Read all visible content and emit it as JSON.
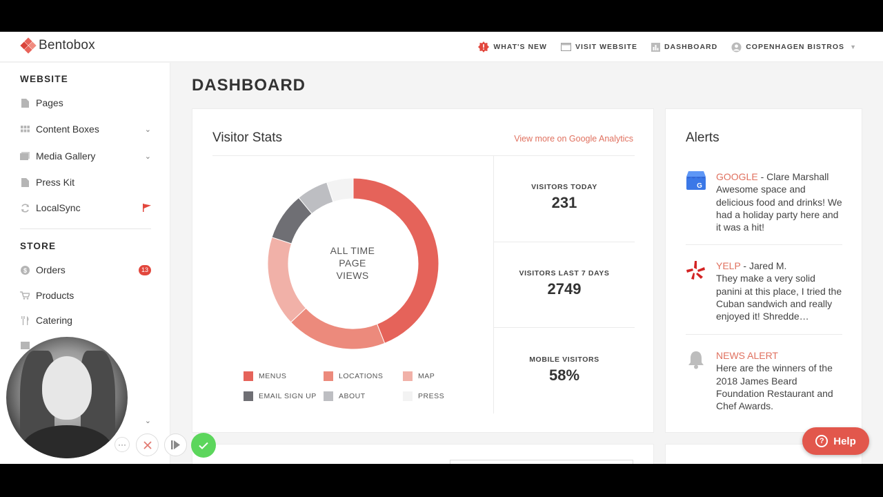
{
  "app": {
    "name": "Bentobox"
  },
  "topnav": {
    "whats_new": "WHAT'S NEW",
    "visit_website": "VISIT WEBSITE",
    "dashboard": "DASHBOARD",
    "account": "COPENHAGEN BISTROS"
  },
  "sidebar": {
    "website_heading": "WEBSITE",
    "website_items": [
      {
        "label": "Pages",
        "icon": "page-icon"
      },
      {
        "label": "Content Boxes",
        "icon": "grid-icon"
      },
      {
        "label": "Media Gallery",
        "icon": "gallery-icon"
      },
      {
        "label": "Press Kit",
        "icon": "page-icon"
      },
      {
        "label": "LocalSync",
        "icon": "sync-icon"
      }
    ],
    "store_heading": "STORE",
    "store_items": [
      {
        "label": "Orders",
        "icon": "dollar-icon",
        "badge": "13"
      },
      {
        "label": "Products",
        "icon": "cart-icon"
      },
      {
        "label": "Catering",
        "icon": "fork-knife-icon"
      }
    ]
  },
  "page": {
    "title": "DASHBOARD"
  },
  "visitor_stats": {
    "title": "Visitor Stats",
    "link": "View more on Google Analytics",
    "donut_label": [
      "ALL TIME",
      "PAGE",
      "VIEWS"
    ],
    "stats": [
      {
        "label": "VISITORS TODAY",
        "value": "231"
      },
      {
        "label": "VISITORS LAST 7 DAYS",
        "value": "2749"
      },
      {
        "label": "MOBILE VISITORS",
        "value": "58%"
      }
    ]
  },
  "chart_data": {
    "type": "pie",
    "categories": [
      "MENUS",
      "LOCATIONS",
      "MAP",
      "EMAIL SIGN UP",
      "ABOUT",
      "PRESS"
    ],
    "values": [
      44,
      19,
      17,
      9,
      6,
      5
    ],
    "colors": [
      "#e5635a",
      "#ec8a7c",
      "#f1b1a8",
      "#6f6f74",
      "#bdbec2",
      "#f3f3f3"
    ],
    "title": "",
    "legend": "bottom"
  },
  "alerts": {
    "title": "Alerts",
    "items": [
      {
        "source": "GOOGLE",
        "author": " - Clare Marshall",
        "text": "Awesome space and delicious food and drinks! We had a holiday party here and it was a hit!",
        "icon": "google-business-icon"
      },
      {
        "source": "YELP",
        "author": " - Jared M.",
        "text": "They make a very solid panini at this place, I tried the Cuban sandwich and really enjoyed it! Shredde…",
        "icon": "yelp-icon"
      },
      {
        "source": "NEWS ALERT",
        "author": "",
        "text": "Here are the winners of the 2018 James Beard Foundation Restaurant and Chef Awards.",
        "icon": "bell-icon"
      }
    ]
  },
  "help": {
    "label": "Help"
  },
  "colors": {
    "accent": "#e2574c",
    "link": "#e0715f",
    "confirm": "#5cd65c"
  }
}
